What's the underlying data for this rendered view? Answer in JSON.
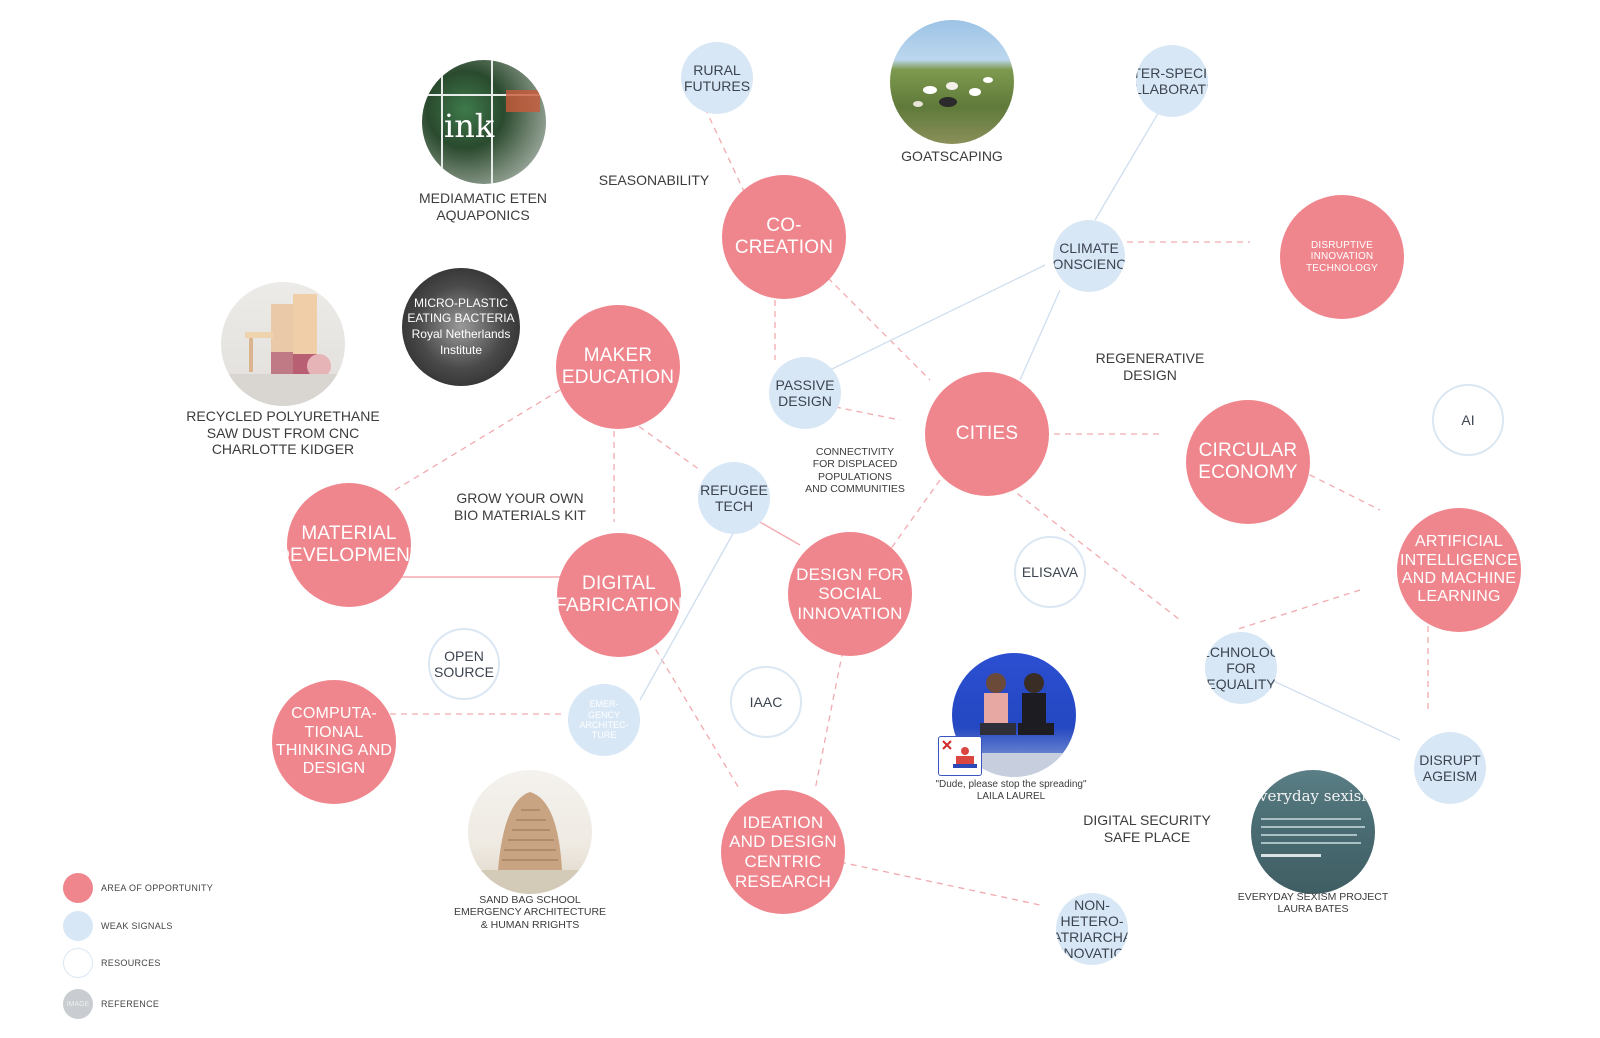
{
  "colors": {
    "opportunity": "#f0868d",
    "weak_signal": "#d8e7f5",
    "resource_ring": "#dbe7f3",
    "reference": "#c9ccd0",
    "edge": "#f2aab0",
    "edge_weak": "#cfdeee"
  },
  "nodes": {
    "co_creation": "CO-CREATION",
    "maker_education": "MAKER\nEDUCATION",
    "cities": "CITIES",
    "circular_economy": "CIRCULAR\nECONOMY",
    "disruptive_innovation": "DISRUPTIVE\nINNOVATION\nTECHNOLOGY",
    "material_development": "MATERIAL\nDEVELOPMENT",
    "digital_fabrication": "DIGITAL\nFABRICATION",
    "design_social_innovation": "DESIGN FOR\nSOCIAL\nINNOVATION",
    "ai_ml": "ARTIFICIAL\nINTELLIGENCE\nAND MACHINE\nLEARNING",
    "computational_thinking": "COMPUTA-\nTIONAL\nTHINKING AND\nDESIGN",
    "ideation_design": "IDEATION\nAND DESIGN\nCENTRIC\nRESEARCH",
    "rural_futures": "RURAL\nFUTURES",
    "inter_species": "INTER-SPECIES\nCOLLABORATION",
    "climate_conscience": "CLIMATE\nCONSCIENCE",
    "passive_design": "PASSIVE\nDESIGN",
    "refugee_tech": "REFUGEE\nTECH",
    "emergency_architecture": "EMER-\nGENCY\nARCHITEC-\nTURE",
    "technology_equality": "TECHNOLOGY\nFOR EQUALITY",
    "disrupt_ageism": "DISRUPT\nAGEISM",
    "non_hetero": "NON-HETERO-\nPATRIARCHAL\nINNOVATION",
    "ai": "AI",
    "elisava": "ELISAVA",
    "open_source": "OPEN\nSOURCE",
    "iaac": "IAAC",
    "micro_plastic": "MICRO-PLASTIC\nEATING BACTERIA\nRoyal Netherlands\nInstitute"
  },
  "labels": {
    "mediamatic": "MEDIAMATIC ETEN\nAQUAPONICS",
    "seasonability": "SEASONABILITY",
    "goatscaping": "GOATSCAPING",
    "recycled": "RECYCLED POLYURETHANE\nSAW DUST FROM CNC\nCHARLOTTE KIDGER",
    "regenerative": "REGENERATIVE\nDESIGN",
    "connectivity": "CONNECTIVITY\nFOR DISPLACED\nPOPULATIONS\nAND COMMUNITIES",
    "grow_your_own": "GROW YOUR OWN\nBIO MATERIALS KIT",
    "sand_bag": "SAND BAG SCHOOL\nEMERGENCY ARCHITECTURE\n& HUMAN RRIGHTS",
    "dude": "\"Dude, please stop the spreading\"\nLAILA LAUREL",
    "digital_security": "DIGITAL SECURITY\nSAFE PLACE",
    "everyday_sexism": "EVERYDAY SEXISM PROJECT\nLAURA BATES"
  },
  "ref_inner": {
    "ink": "ink",
    "sexism": "veryday sexism p"
  },
  "legend": {
    "opportunity": "AREA OF OPPORTUNITY",
    "weak": "WEAK SIGNALS",
    "resources": "RESOURCES",
    "reference": "REFERENCE",
    "reference_dot": "IMAGE"
  }
}
